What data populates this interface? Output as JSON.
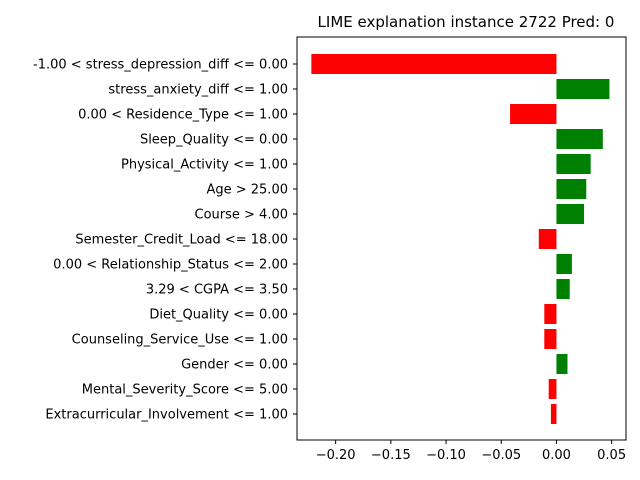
{
  "chart_data": {
    "type": "bar",
    "orientation": "horizontal",
    "title": "LIME explanation instance 2722 Pred: 0",
    "xlabel": "",
    "ylabel": "",
    "xlim": [
      -0.235,
      0.063
    ],
    "x_ticks": [
      -0.2,
      -0.15,
      -0.1,
      -0.05,
      0.0,
      0.05
    ],
    "x_tick_labels": [
      "−0.20",
      "−0.15",
      "−0.10",
      "−0.05",
      "0.00",
      "0.05"
    ],
    "grid": false,
    "positive_color": "#008000",
    "negative_color": "#ff0000",
    "categories": [
      "-1.00 < stress_depression_diff <= 0.00",
      "stress_anxiety_diff <= 1.00",
      "0.00 < Residence_Type <= 1.00",
      "Sleep_Quality <= 0.00",
      "Physical_Activity <= 1.00",
      "Age > 25.00",
      "Course > 4.00",
      "Semester_Credit_Load <= 18.00",
      "0.00 < Relationship_Status <= 2.00",
      "3.29 < CGPA <= 3.50",
      "Diet_Quality <= 0.00",
      "Counseling_Service_Use <= 1.00",
      "Gender <= 0.00",
      "Mental_Severity_Score <= 5.00",
      "Extracurricular_Involvement <= 1.00"
    ],
    "values": [
      -0.222,
      0.048,
      -0.042,
      0.042,
      0.031,
      0.027,
      0.025,
      -0.016,
      0.014,
      0.012,
      -0.011,
      -0.011,
      0.01,
      -0.007,
      -0.005
    ]
  }
}
